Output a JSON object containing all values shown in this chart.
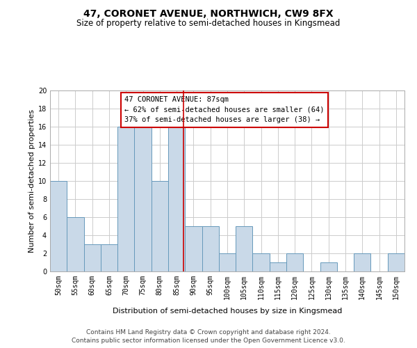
{
  "title": "47, CORONET AVENUE, NORTHWICH, CW9 8FX",
  "subtitle": "Size of property relative to semi-detached houses in Kingsmead",
  "xlabel": "Distribution of semi-detached houses by size in Kingsmead",
  "ylabel": "Number of semi-detached properties",
  "footer1": "Contains HM Land Registry data © Crown copyright and database right 2024.",
  "footer2": "Contains public sector information licensed under the Open Government Licence v3.0.",
  "annotation_title": "47 CORONET AVENUE: 87sqm",
  "annotation_line1": "← 62% of semi-detached houses are smaller (64)",
  "annotation_line2": "37% of semi-detached houses are larger (38) →",
  "property_size": 87,
  "bar_color": "#c9d9e8",
  "bar_edge_color": "#6699bb",
  "highlight_line_color": "#cc0000",
  "annotation_box_color": "#cc0000",
  "grid_color": "#cccccc",
  "categories": [
    "50sqm",
    "55sqm",
    "60sqm",
    "65sqm",
    "70sqm",
    "75sqm",
    "80sqm",
    "85sqm",
    "90sqm",
    "95sqm",
    "100sqm",
    "105sqm",
    "110sqm",
    "115sqm",
    "120sqm",
    "125sqm",
    "130sqm",
    "135sqm",
    "140sqm",
    "145sqm",
    "150sqm"
  ],
  "values": [
    10,
    6,
    3,
    3,
    16,
    16,
    10,
    16,
    5,
    5,
    2,
    5,
    2,
    1,
    2,
    0,
    1,
    0,
    2,
    0,
    2
  ],
  "bin_edges": [
    47.5,
    52.5,
    57.5,
    62.5,
    67.5,
    72.5,
    77.5,
    82.5,
    87.5,
    92.5,
    97.5,
    102.5,
    107.5,
    112.5,
    117.5,
    122.5,
    127.5,
    132.5,
    137.5,
    142.5,
    147.5,
    152.5
  ],
  "ylim": [
    0,
    20
  ],
  "yticks": [
    0,
    2,
    4,
    6,
    8,
    10,
    12,
    14,
    16,
    18,
    20
  ],
  "title_fontsize": 10,
  "subtitle_fontsize": 8.5,
  "axis_label_fontsize": 8,
  "tick_fontsize": 7,
  "footer_fontsize": 6.5,
  "annotation_fontsize": 7.5
}
